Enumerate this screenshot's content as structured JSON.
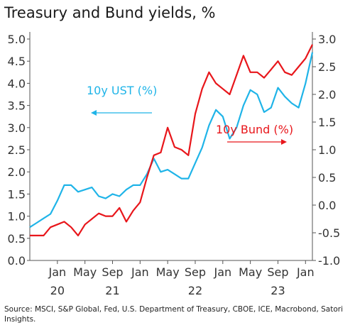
{
  "title": "Treasury and Bund yields, %",
  "source": "Source: MSCI, S&P Global, Fed, U.S. Department of Treasury, CBOE, ICE, Macrobond, Satori Insights.",
  "colors": {
    "ust": "#1fb4e8",
    "bund": "#e8161b",
    "axis": "#555555"
  },
  "chart_data": {
    "type": "line",
    "title": "Treasury and Bund yields, %",
    "x_tick_months": [
      "Jan",
      "May",
      "Sep",
      "Jan",
      "May",
      "Sep",
      "Jan",
      "May",
      "Sep",
      "Jan"
    ],
    "x_tick_dates": [
      "2020-01",
      "2020-05",
      "2020-09",
      "2021-01",
      "2021-05",
      "2021-09",
      "2022-01",
      "2022-05",
      "2022-09",
      "2023-01"
    ],
    "x_year_labels": [
      {
        "label": "20",
        "date": "2020-01"
      },
      {
        "label": "21",
        "date": "2020-09"
      },
      {
        "label": "22",
        "date": "2021-09"
      },
      {
        "label": "23",
        "date": "2022-09"
      }
    ],
    "xlim": [
      "2019-09",
      "2023-02"
    ],
    "y_left": {
      "ylim": [
        0.0,
        5.0
      ],
      "ticks": [
        "0.0",
        "0.5",
        "1.0",
        "1.5",
        "2.0",
        "2.5",
        "3.0",
        "3.5",
        "4.0",
        "4.5",
        "5.0"
      ]
    },
    "y_right": {
      "ylim": [
        -1.0,
        3.0
      ],
      "ticks": [
        "-1.0",
        "-0.5",
        "0.0",
        "0.5",
        "1.0",
        "1.5",
        "2.0",
        "2.5",
        "3.0"
      ]
    },
    "annotations": [
      {
        "text": "10y UST (%)",
        "series": "ust",
        "arrow": "left",
        "color": "#1fb4e8"
      },
      {
        "text": "10y Bund (%)",
        "series": "bund",
        "arrow": "right",
        "color": "#e8161b"
      }
    ],
    "series": [
      {
        "name": "10y UST (%)",
        "axis": "left",
        "color": "#1fb4e8",
        "x": [
          "2019-09",
          "2019-10",
          "2019-11",
          "2019-12",
          "2020-01",
          "2020-02",
          "2020-03",
          "2020-04",
          "2020-05",
          "2020-06",
          "2020-07",
          "2020-08",
          "2020-09",
          "2020-10",
          "2020-11",
          "2020-12",
          "2021-01",
          "2021-02",
          "2021-03",
          "2021-04",
          "2021-05",
          "2021-06",
          "2021-07",
          "2021-08",
          "2021-09",
          "2021-10",
          "2021-11",
          "2021-12",
          "2022-01",
          "2022-02",
          "2022-03",
          "2022-04",
          "2022-05",
          "2022-06",
          "2022-07",
          "2022-08",
          "2022-09",
          "2022-10",
          "2022-11",
          "2022-12",
          "2023-01",
          "2023-02"
        ],
        "y": [
          0.75,
          0.85,
          0.95,
          1.05,
          1.35,
          1.7,
          1.7,
          1.55,
          1.6,
          1.65,
          1.45,
          1.4,
          1.5,
          1.45,
          1.6,
          1.7,
          1.7,
          1.95,
          2.3,
          2.0,
          2.05,
          1.95,
          1.85,
          1.85,
          2.2,
          2.55,
          3.05,
          3.4,
          3.25,
          2.75,
          3.0,
          3.5,
          3.85,
          3.75,
          3.35,
          3.45,
          3.9,
          3.7,
          3.55,
          3.45,
          4.0,
          4.7
        ]
      },
      {
        "name": "10y Bund (%)",
        "axis": "right",
        "color": "#e8161b",
        "x": [
          "2019-09",
          "2019-10",
          "2019-11",
          "2019-12",
          "2020-01",
          "2020-02",
          "2020-03",
          "2020-04",
          "2020-05",
          "2020-06",
          "2020-07",
          "2020-08",
          "2020-09",
          "2020-10",
          "2020-11",
          "2020-12",
          "2021-01",
          "2021-02",
          "2021-03",
          "2021-04",
          "2021-05",
          "2021-06",
          "2021-07",
          "2021-08",
          "2021-09",
          "2021-10",
          "2021-11",
          "2021-12",
          "2022-01",
          "2022-02",
          "2022-03",
          "2022-04",
          "2022-05",
          "2022-06",
          "2022-07",
          "2022-08",
          "2022-09",
          "2022-10",
          "2022-11",
          "2022-12",
          "2023-01",
          "2023-02"
        ],
        "y": [
          -0.55,
          -0.55,
          -0.55,
          -0.4,
          -0.35,
          -0.3,
          -0.4,
          -0.55,
          -0.35,
          -0.25,
          -0.15,
          -0.2,
          -0.2,
          -0.05,
          -0.3,
          -0.1,
          0.05,
          0.5,
          0.9,
          0.95,
          1.4,
          1.05,
          1.0,
          0.9,
          1.65,
          2.1,
          2.4,
          2.2,
          2.1,
          2.0,
          2.35,
          2.7,
          2.4,
          2.4,
          2.3,
          2.45,
          2.6,
          2.4,
          2.35,
          2.5,
          2.65,
          2.9
        ]
      }
    ]
  }
}
